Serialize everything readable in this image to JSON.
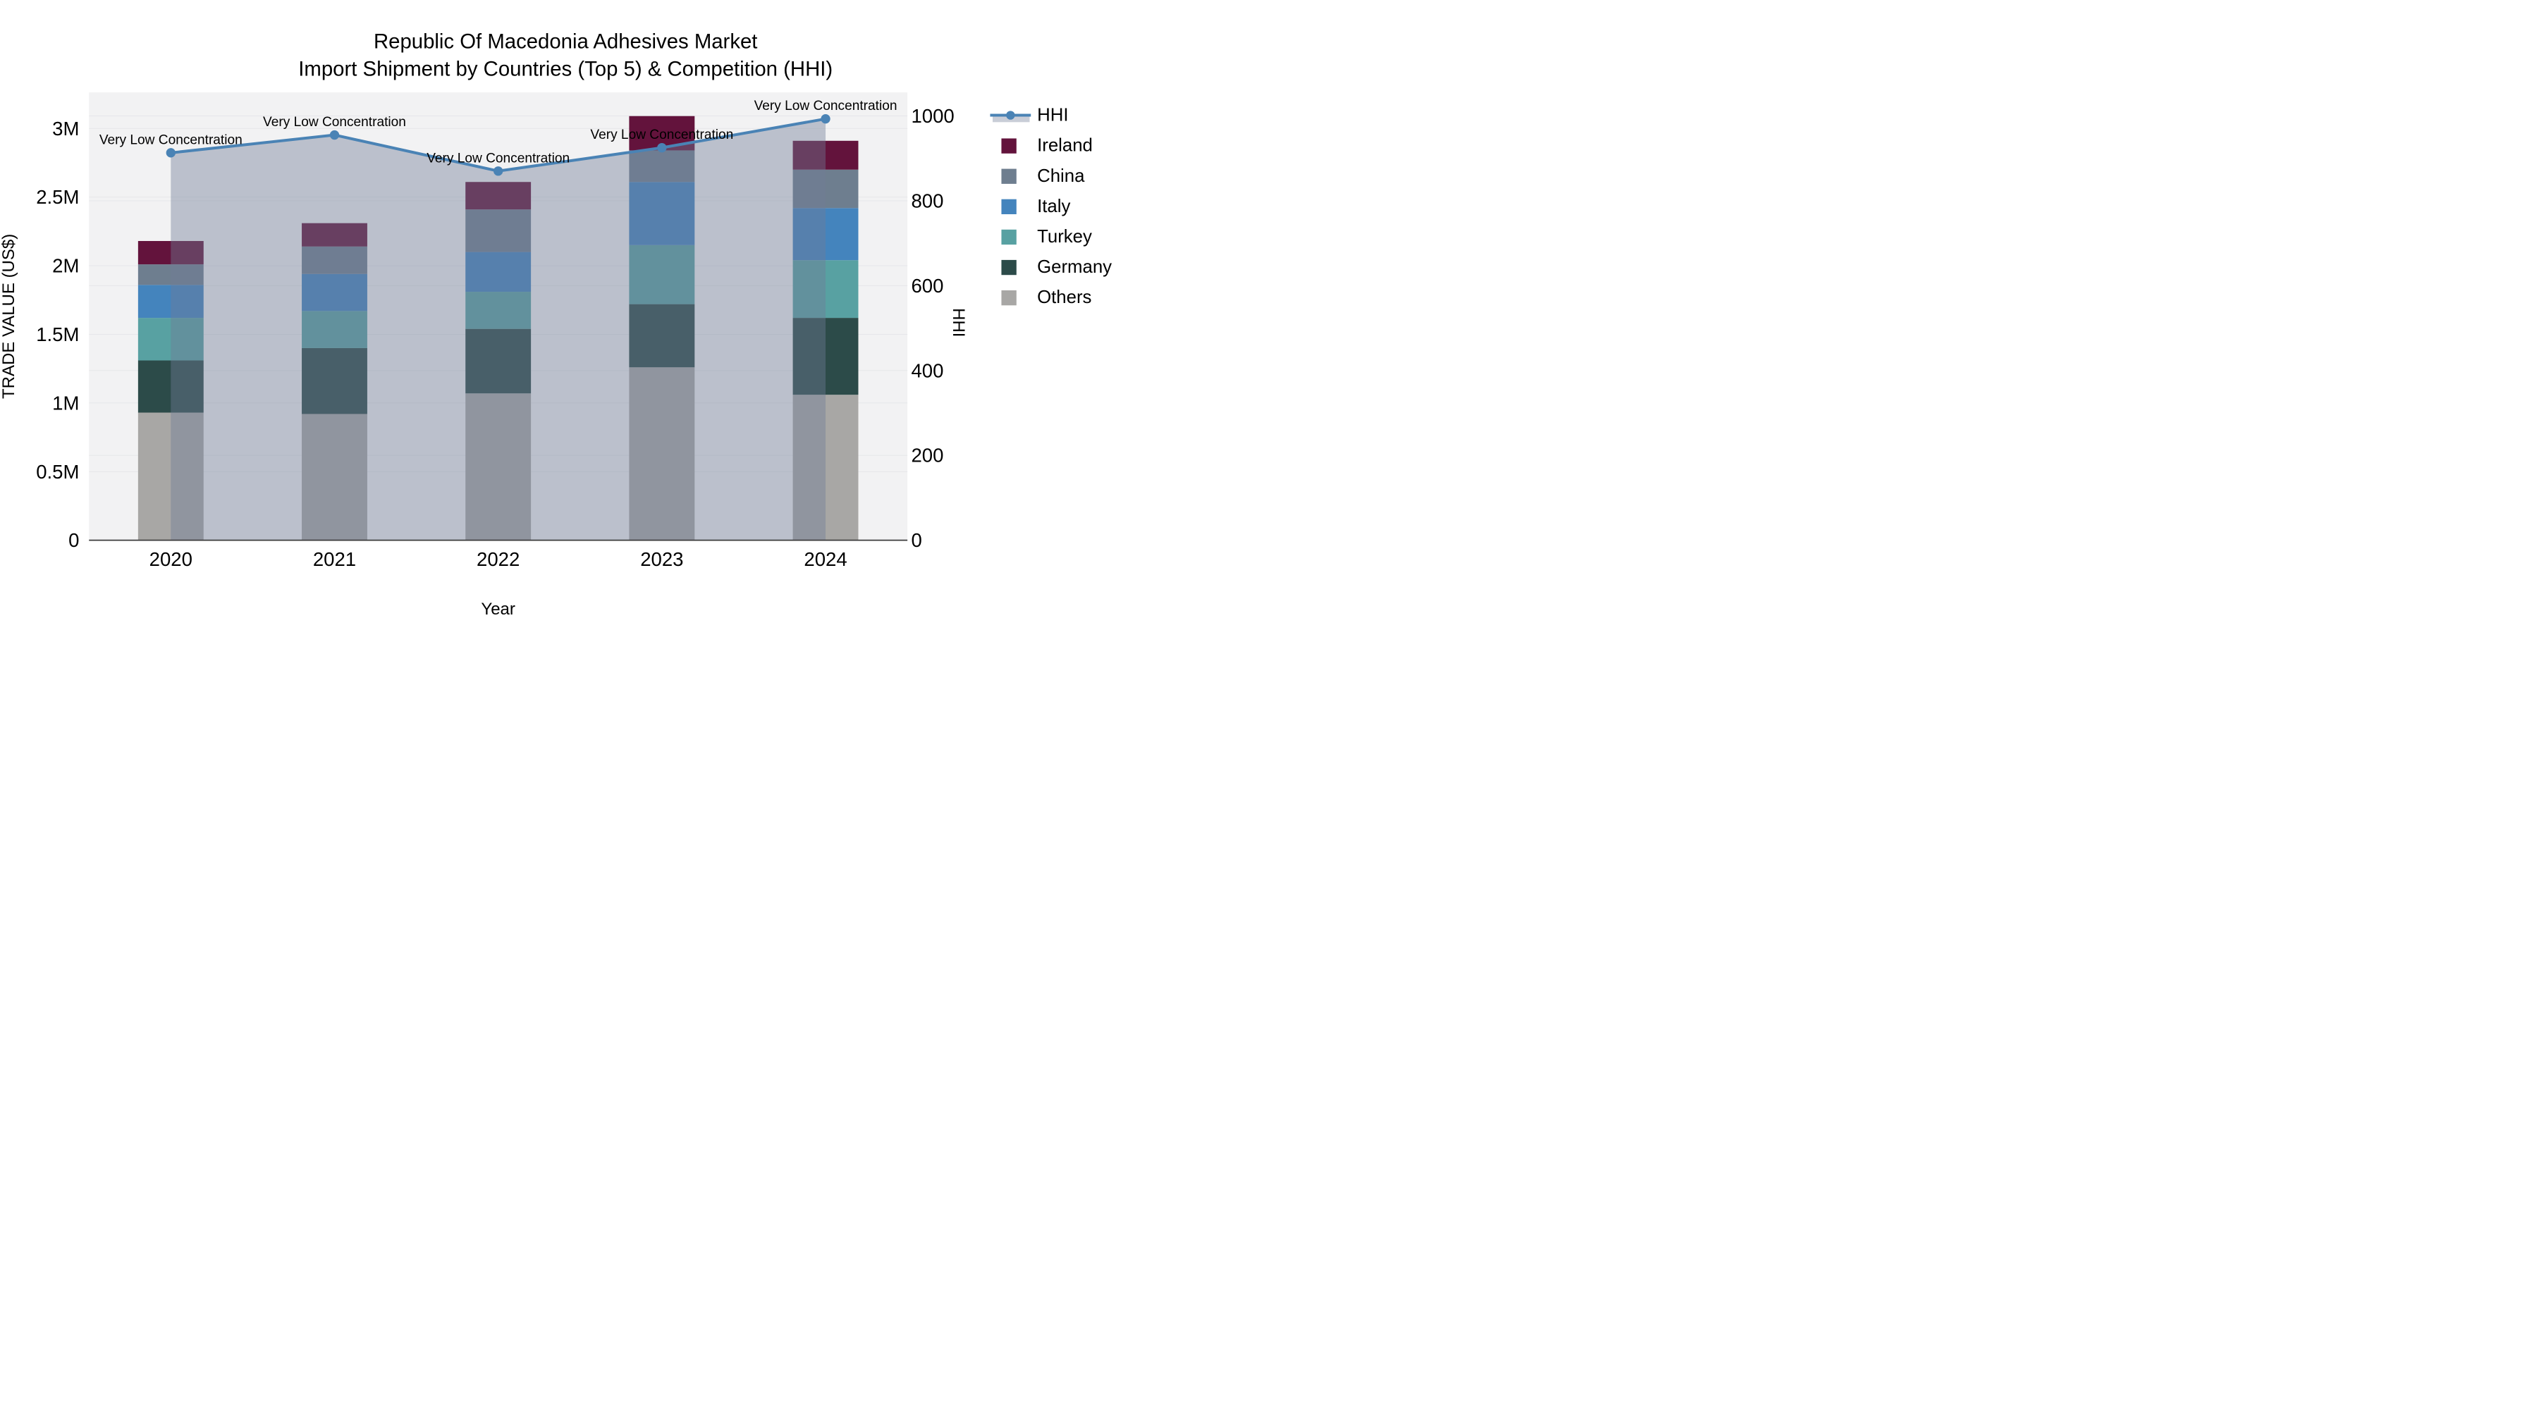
{
  "title": {
    "line1": "Republic Of Macedonia Adhesives Market",
    "line2": "Import Shipment by Countries (Top 5) & Competition (HHI)"
  },
  "axes": {
    "x": {
      "title": "Year",
      "tick_labels": [
        "2020",
        "2021",
        "2022",
        "2023",
        "2024"
      ]
    },
    "left": {
      "title": "TRADE VALUE (US$)",
      "tick_labels": [
        "0",
        "0.5M",
        "1M",
        "1.5M",
        "2M",
        "2.5M",
        "3M"
      ],
      "tick_values": [
        0,
        500000,
        1000000,
        1500000,
        2000000,
        2500000,
        3000000
      ],
      "range": [
        0,
        3000000
      ]
    },
    "right": {
      "title": "HHI",
      "tick_labels": [
        "0",
        "200",
        "400",
        "600",
        "800",
        "1000"
      ],
      "tick_values": [
        0,
        200,
        400,
        600,
        800,
        1000
      ],
      "range": [
        0,
        1000
      ]
    }
  },
  "legend": {
    "items": [
      {
        "label": "HHI",
        "type": "line",
        "color": "#4A83B5"
      },
      {
        "label": "Ireland",
        "type": "swatch",
        "color": "#63133C"
      },
      {
        "label": "China",
        "type": "swatch",
        "color": "#6E7E8F"
      },
      {
        "label": "Italy",
        "type": "swatch",
        "color": "#4484BD"
      },
      {
        "label": "Turkey",
        "type": "swatch",
        "color": "#58A1A2"
      },
      {
        "label": "Germany",
        "type": "swatch",
        "color": "#2C4B49"
      },
      {
        "label": "Others",
        "type": "swatch",
        "color": "#A8A7A5"
      }
    ]
  },
  "chart_data": {
    "type": "bar",
    "subtype": "stacked-bar-with-line",
    "categories": [
      "2020",
      "2021",
      "2022",
      "2023",
      "2024"
    ],
    "series": [
      {
        "name": "Others",
        "color": "#A8A7A5",
        "values": [
          930000,
          920000,
          1070000,
          1260000,
          1060000
        ]
      },
      {
        "name": "Germany",
        "color": "#2C4B49",
        "values": [
          380000,
          480000,
          470000,
          460000,
          560000
        ]
      },
      {
        "name": "Turkey",
        "color": "#58A1A2",
        "values": [
          310000,
          270000,
          270000,
          430000,
          420000
        ]
      },
      {
        "name": "Italy",
        "color": "#4484BD",
        "values": [
          240000,
          270000,
          290000,
          460000,
          380000
        ]
      },
      {
        "name": "China",
        "color": "#6E7E8F",
        "values": [
          150000,
          200000,
          310000,
          230000,
          280000
        ]
      },
      {
        "name": "Ireland",
        "color": "#63133C",
        "values": [
          170000,
          170000,
          200000,
          250000,
          210000
        ]
      }
    ],
    "line_series": {
      "name": "HHI",
      "axis": "right",
      "color": "#4A83B5",
      "area_fill": "rgba(112,125,150,0.42)",
      "values": [
        913,
        955,
        870,
        925,
        993
      ]
    },
    "annotations": [
      "Very Low Concentration",
      "Very Low Concentration",
      "Very Low Concentration",
      "Very Low Concentration",
      "Very Low Concentration"
    ],
    "title": "Republic Of Macedonia Adhesives Market — Import Shipment by Countries (Top 5) & Competition (HHI)",
    "xlabel": "Year",
    "ylabel": "TRADE VALUE (US$)",
    "y2label": "HHI",
    "ylim": [
      0,
      3000000
    ],
    "y2lim": [
      0,
      1000
    ],
    "grid": true,
    "legend_position": "right"
  },
  "colors": {
    "plot_background": "#F2F2F3",
    "gridline": "#E4E5E8",
    "axis_line": "#3D3D3D",
    "text": "#000000"
  }
}
